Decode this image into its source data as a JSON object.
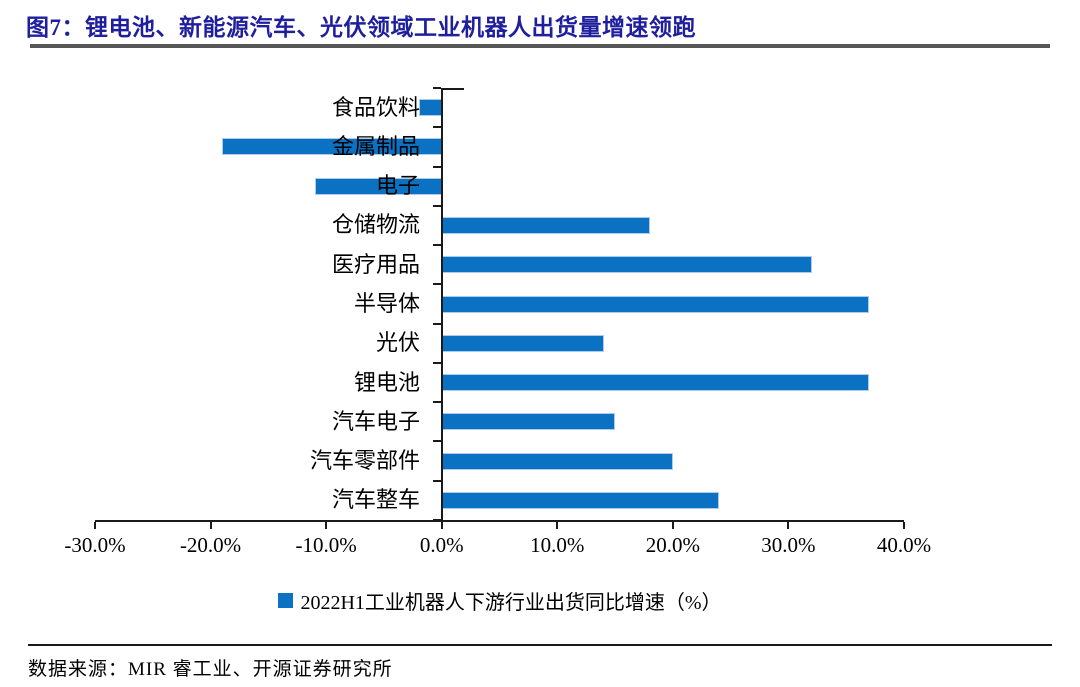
{
  "title": "图7：锂电池、新能源汽车、光伏领域工业机器人出货量增速领跑",
  "source": "数据来源：MIR 睿工业、开源证券研究所",
  "colors": {
    "bar": "#0b72c3",
    "bar_border": "#aecbea",
    "title": "#1f1f9e",
    "axis": "#1a1a1a",
    "title_rule": "#565656"
  },
  "chart_data": {
    "type": "bar",
    "orientation": "horizontal",
    "title": "图7：锂电池、新能源汽车、光伏领域工业机器人出货量增速领跑",
    "legend": "2022H1工业机器人下游行业出货同比增速（%）",
    "legend_position": "bottom",
    "grid": false,
    "categories": [
      "食品饮料",
      "金属制品",
      "电子",
      "仓储物流",
      "医疗用品",
      "半导体",
      "光伏",
      "锂电池",
      "汽车电子",
      "汽车零部件",
      "汽车整车"
    ],
    "values": [
      -2,
      -19,
      -11,
      18,
      32,
      37,
      14,
      37,
      15,
      20,
      24
    ],
    "unit": "%",
    "xlim": [
      -30,
      40
    ],
    "xtick_labels": [
      "-30.0%",
      "-20.0%",
      "-10.0%",
      "0.0%",
      "10.0%",
      "20.0%",
      "30.0%",
      "40.0%"
    ],
    "xtick_values": [
      -30,
      -20,
      -10,
      0,
      10,
      20,
      30,
      40
    ]
  }
}
